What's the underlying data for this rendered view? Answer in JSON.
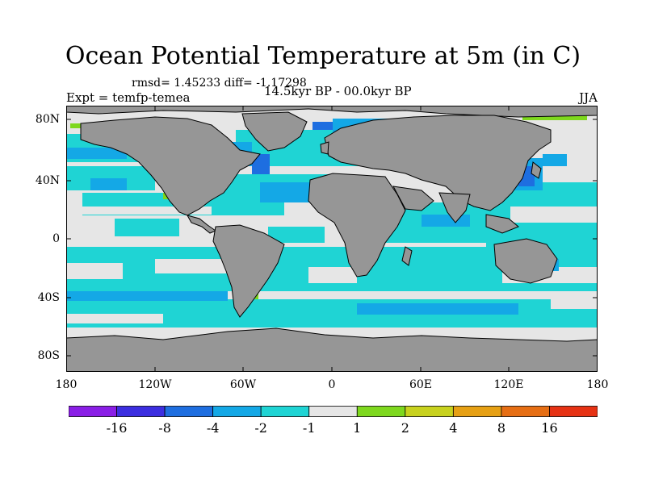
{
  "title": "Ocean Potential Temperature at 5m (in C)",
  "stats": "rmsd= 1.45233  diff= -1.17298",
  "experiment": "Expt = temfp-temea",
  "period": "14.5kyr BP - 00.0kyr BP",
  "season": "JJA",
  "lat_ticks": [
    "80N",
    "40N",
    "0",
    "40S",
    "80S"
  ],
  "lon_ticks": [
    "180",
    "120W",
    "60W",
    "0",
    "60E",
    "120E",
    "180"
  ],
  "colorbar": {
    "levels": [
      "-16",
      "-8",
      "-4",
      "-2",
      "-1",
      "1",
      "2",
      "4",
      "8",
      "16"
    ],
    "colors": [
      "#8a1ee6",
      "#3c2ee0",
      "#1e6ee0",
      "#14a8e6",
      "#1fd4d4",
      "#e6e6e6",
      "#7ed81e",
      "#c8d21e",
      "#e6a014",
      "#e66e14",
      "#e63214"
    ]
  },
  "colors": {
    "land": "#969696",
    "ocean_neutral": "#e6e6e6",
    "cooling_1_2": "#1fd4d4",
    "cooling_2_4": "#14a8e6",
    "cooling_4_8": "#1e6ee0",
    "warming_1_2": "#7ed81e"
  }
}
